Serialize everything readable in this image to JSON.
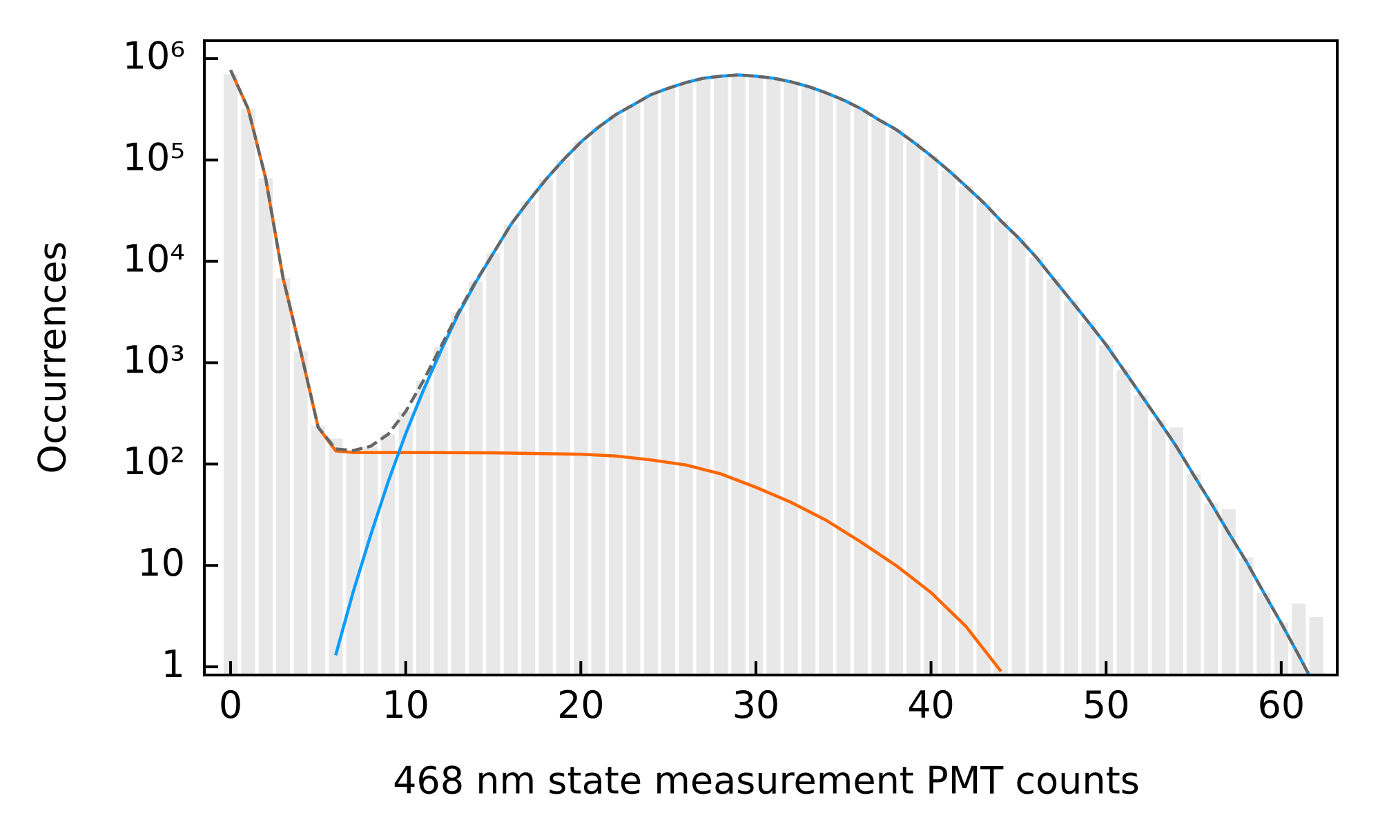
{
  "chart_data": {
    "type": "histogram",
    "xlabel": "468 nm state measurement PMT counts",
    "ylabel": "Occurrences",
    "xlim": [
      -1.5,
      63.2
    ],
    "ylim": [
      0.83,
      1500000
    ],
    "yscale": "log",
    "xticks": [
      0,
      10,
      20,
      30,
      40,
      50,
      60
    ],
    "yticks": [
      1,
      10,
      {
        "value": 100,
        "label": "10²"
      },
      {
        "value": 1000,
        "label": "10³"
      },
      {
        "value": 10000,
        "label": "10⁴"
      },
      {
        "value": 100000,
        "label": "10⁵"
      },
      {
        "value": 1000000,
        "label": "10⁶"
      }
    ],
    "series": [
      {
        "type": "bar",
        "color": "#e8e8e8",
        "x": [
          0,
          1,
          2,
          3,
          4,
          5,
          6,
          7,
          8,
          9,
          10,
          11,
          12,
          13,
          14,
          15,
          16,
          17,
          18,
          19,
          20,
          21,
          22,
          23,
          24,
          25,
          26,
          27,
          28,
          29,
          30,
          31,
          32,
          33,
          34,
          35,
          36,
          37,
          38,
          39,
          40,
          41,
          42,
          43,
          44,
          45,
          46,
          47,
          48,
          49,
          50,
          51,
          52,
          53,
          54,
          55,
          56,
          57,
          58,
          59,
          60,
          61,
          62
        ],
        "values": [
          700000,
          320000,
          66000,
          6800,
          1300,
          240,
          178,
          136,
          150,
          197,
          330,
          660,
          1430,
          3130,
          6330,
          12000,
          23000,
          39000,
          64000,
          100000,
          150000,
          210000,
          280000,
          350000,
          440000,
          510000,
          580000,
          640000,
          670000,
          690000,
          670000,
          640000,
          590000,
          530000,
          460000,
          390000,
          320000,
          250000,
          200000,
          150000,
          110000,
          79000,
          55000,
          38000,
          25000,
          17000,
          11000,
          6700,
          4100,
          2500,
          1500,
          850,
          480,
          270,
          230,
          80,
          41,
          36,
          12,
          5.4,
          2.7,
          4.2,
          3.1
        ]
      },
      {
        "type": "line",
        "color": "#ff6600",
        "x": [
          0,
          1,
          2,
          3,
          4,
          5,
          6,
          7,
          10,
          15,
          20,
          22,
          24,
          26,
          28,
          30,
          32,
          34,
          36,
          38,
          40,
          42,
          44
        ],
        "values": [
          770000,
          320000,
          66000,
          6800,
          1300,
          230,
          135,
          130,
          130,
          129,
          125,
          120,
          110,
          98,
          80,
          59,
          42,
          28,
          17,
          10,
          5.4,
          2.5,
          0.9
        ]
      },
      {
        "type": "line",
        "color": "#0a9cff",
        "x": [
          6,
          7,
          8,
          9,
          10,
          11,
          12,
          13,
          14,
          15,
          16,
          17,
          18,
          19,
          20,
          21,
          22,
          23,
          24,
          25,
          26,
          27,
          28,
          29,
          30,
          31,
          32,
          33,
          34,
          35,
          36,
          37,
          38,
          39,
          40,
          41,
          42,
          43,
          44,
          45,
          46,
          47,
          48,
          49,
          50,
          51,
          52,
          53,
          54,
          55,
          56,
          57,
          58,
          59,
          60,
          61,
          62
        ],
        "values": [
          1.3,
          5.5,
          20,
          67,
          200,
          530,
          1300,
          3000,
          6200,
          12000,
          23000,
          39000,
          64000,
          100000,
          150000,
          210000,
          280000,
          350000,
          440000,
          510000,
          580000,
          640000,
          670000,
          690000,
          670000,
          640000,
          590000,
          530000,
          460000,
          390000,
          320000,
          250000,
          200000,
          150000,
          110000,
          79000,
          55000,
          38000,
          25000,
          17000,
          11000,
          6700,
          4100,
          2500,
          1500,
          850,
          480,
          270,
          150,
          78,
          41,
          21,
          11,
          5.4,
          2.7,
          1.3,
          0.61
        ]
      },
      {
        "type": "line",
        "color": "#666666",
        "dashed": true,
        "x": [
          0,
          1,
          2,
          3,
          4,
          5,
          6,
          7,
          8,
          9,
          10,
          11,
          12,
          13,
          14,
          15,
          16,
          17,
          18,
          19,
          20,
          21,
          22,
          23,
          24,
          25,
          26,
          27,
          28,
          29,
          30,
          31,
          32,
          33,
          34,
          35,
          36,
          37,
          38,
          39,
          40,
          41,
          42,
          43,
          44,
          45,
          46,
          47,
          48,
          49,
          50,
          51,
          52,
          53,
          54,
          55,
          56,
          57,
          58,
          59,
          60,
          61,
          62
        ],
        "values": [
          770000,
          320000,
          66000,
          6800,
          1300,
          230,
          141,
          136,
          150,
          197,
          330,
          660,
          1430,
          3130,
          6330,
          12000,
          23000,
          39000,
          64000,
          100000,
          150000,
          210000,
          280000,
          350000,
          440000,
          510000,
          580000,
          640000,
          670000,
          690000,
          670000,
          640000,
          590000,
          530000,
          460000,
          390000,
          320000,
          250000,
          200000,
          150000,
          110000,
          79000,
          55000,
          38000,
          25000,
          17000,
          11000,
          6700,
          4100,
          2500,
          1500,
          850,
          480,
          270,
          150,
          78,
          41,
          21,
          11,
          5.4,
          2.7,
          1.3,
          0.61
        ]
      }
    ]
  }
}
